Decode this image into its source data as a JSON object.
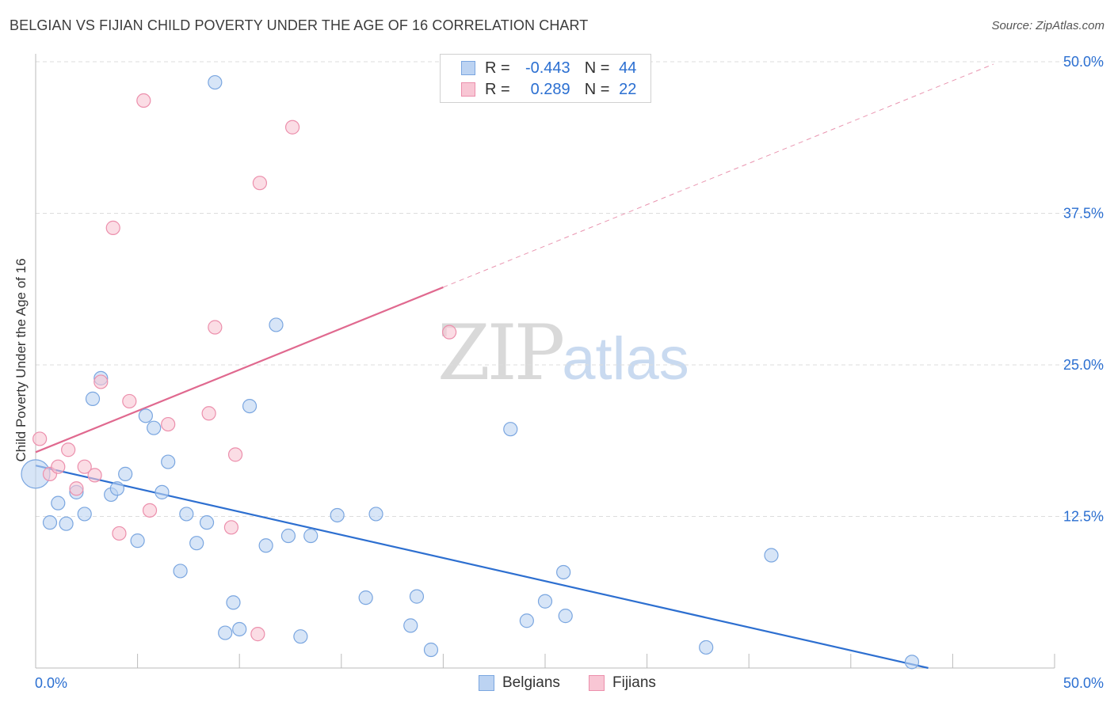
{
  "header": {
    "title": "BELGIAN VS FIJIAN CHILD POVERTY UNDER THE AGE OF 16 CORRELATION CHART",
    "source": "Source: ZipAtlas.com"
  },
  "watermark": {
    "zip": "ZIP",
    "atlas": "atlas"
  },
  "legend": {
    "rows": [
      {
        "r_label": "R =",
        "r_value": "-0.443",
        "n_label": "N =",
        "n_value": "44"
      },
      {
        "r_label": "R =",
        "r_value": "0.289",
        "n_label": "N =",
        "n_value": "22"
      }
    ]
  },
  "bottom_legend": {
    "belgians": "Belgians",
    "fijians": "Fijians"
  },
  "colors": {
    "belgians_fill": "#bcd3f2",
    "belgians_stroke": "#7aa6e0",
    "belgians_line": "#2d6fd0",
    "fijians_fill": "#f8c6d4",
    "fijians_stroke": "#ec8fac",
    "fijians_line": "#e0698f",
    "axis_text": "#2b6fd1",
    "grid": "#dddddd"
  },
  "chart_data": {
    "type": "scatter",
    "title": "BELGIAN VS FIJIAN CHILD POVERTY UNDER THE AGE OF 16 CORRELATION CHART",
    "xlabel": "",
    "ylabel": "Child Poverty Under the Age of 16",
    "xlim": [
      0,
      50
    ],
    "ylim": [
      0,
      50
    ],
    "x_tick_labels": [
      {
        "value": 0,
        "label": "0.0%"
      },
      {
        "value": 50,
        "label": "50.0%"
      }
    ],
    "y_tick_labels": [
      {
        "value": 12.5,
        "label": "12.5%"
      },
      {
        "value": 25,
        "label": "25.0%"
      },
      {
        "value": 37.5,
        "label": "37.5%"
      },
      {
        "value": 50,
        "label": "50.0%"
      }
    ],
    "x_minor_ticks": [
      5,
      10,
      15,
      20,
      25,
      30,
      35,
      40,
      45,
      50
    ],
    "series": [
      {
        "name": "Belgians",
        "key": "belgians",
        "R": -0.443,
        "N": 44,
        "trend": {
          "x0": 0,
          "y0": 16.7,
          "x1": 43.8,
          "y1": 0,
          "dash_to": null
        },
        "points": [
          {
            "x": 0.0,
            "y": 16.0,
            "big": true
          },
          {
            "x": 0.7,
            "y": 12.0
          },
          {
            "x": 1.1,
            "y": 13.6
          },
          {
            "x": 1.5,
            "y": 11.9
          },
          {
            "x": 2.0,
            "y": 14.5
          },
          {
            "x": 2.4,
            "y": 12.7
          },
          {
            "x": 2.8,
            "y": 22.2
          },
          {
            "x": 3.2,
            "y": 23.9
          },
          {
            "x": 3.7,
            "y": 14.3
          },
          {
            "x": 4.0,
            "y": 14.8
          },
          {
            "x": 4.4,
            "y": 16.0
          },
          {
            "x": 5.0,
            "y": 10.5
          },
          {
            "x": 5.4,
            "y": 20.8
          },
          {
            "x": 5.8,
            "y": 19.8
          },
          {
            "x": 6.2,
            "y": 14.5
          },
          {
            "x": 6.5,
            "y": 17.0
          },
          {
            "x": 7.1,
            "y": 8.0
          },
          {
            "x": 7.4,
            "y": 12.7
          },
          {
            "x": 7.9,
            "y": 10.3
          },
          {
            "x": 8.4,
            "y": 12.0
          },
          {
            "x": 8.8,
            "y": 48.3
          },
          {
            "x": 9.3,
            "y": 2.9
          },
          {
            "x": 9.7,
            "y": 5.4
          },
          {
            "x": 10.0,
            "y": 3.2
          },
          {
            "x": 10.5,
            "y": 21.6
          },
          {
            "x": 11.3,
            "y": 10.1
          },
          {
            "x": 11.8,
            "y": 28.3
          },
          {
            "x": 12.4,
            "y": 10.9
          },
          {
            "x": 13.0,
            "y": 2.6
          },
          {
            "x": 13.5,
            "y": 10.9
          },
          {
            "x": 14.8,
            "y": 12.6
          },
          {
            "x": 16.2,
            "y": 5.8
          },
          {
            "x": 16.7,
            "y": 12.7
          },
          {
            "x": 18.4,
            "y": 3.5
          },
          {
            "x": 18.7,
            "y": 5.9
          },
          {
            "x": 19.4,
            "y": 1.5
          },
          {
            "x": 23.3,
            "y": 19.7
          },
          {
            "x": 24.1,
            "y": 3.9
          },
          {
            "x": 25.0,
            "y": 5.5
          },
          {
            "x": 25.9,
            "y": 7.9
          },
          {
            "x": 26.0,
            "y": 4.3
          },
          {
            "x": 32.9,
            "y": 1.7
          },
          {
            "x": 36.1,
            "y": 9.3
          },
          {
            "x": 43.0,
            "y": 0.5
          }
        ]
      },
      {
        "name": "Fijians",
        "key": "fijians",
        "R": 0.289,
        "N": 22,
        "trend": {
          "x0": 0,
          "y0": 17.8,
          "x1": 20.0,
          "y1": 31.4,
          "dash_to": {
            "x": 47.0,
            "y": 49.8
          }
        },
        "points": [
          {
            "x": 0.2,
            "y": 18.9
          },
          {
            "x": 0.7,
            "y": 16.0
          },
          {
            "x": 1.1,
            "y": 16.6
          },
          {
            "x": 1.6,
            "y": 18.0
          },
          {
            "x": 2.0,
            "y": 14.8
          },
          {
            "x": 2.4,
            "y": 16.6
          },
          {
            "x": 2.9,
            "y": 15.9
          },
          {
            "x": 3.2,
            "y": 23.6
          },
          {
            "x": 3.8,
            "y": 36.3
          },
          {
            "x": 4.1,
            "y": 11.1
          },
          {
            "x": 4.6,
            "y": 22.0
          },
          {
            "x": 5.3,
            "y": 46.8
          },
          {
            "x": 5.6,
            "y": 13.0
          },
          {
            "x": 6.5,
            "y": 20.1
          },
          {
            "x": 8.5,
            "y": 21.0
          },
          {
            "x": 8.8,
            "y": 28.1
          },
          {
            "x": 9.6,
            "y": 11.6
          },
          {
            "x": 9.8,
            "y": 17.6
          },
          {
            "x": 10.9,
            "y": 2.8
          },
          {
            "x": 11.0,
            "y": 40.0
          },
          {
            "x": 12.6,
            "y": 44.6
          },
          {
            "x": 20.3,
            "y": 27.7
          }
        ]
      }
    ]
  }
}
